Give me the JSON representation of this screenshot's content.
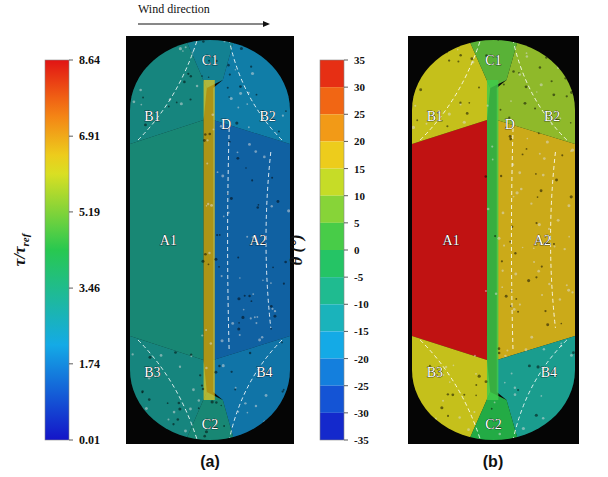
{
  "chart_data": [
    {
      "type": "heatmap",
      "title": "(a)",
      "annotation": "Wind direction",
      "colorbar": {
        "title": "τ/τ",
        "title_sub": "ref",
        "range": [
          0.01,
          8.64
        ],
        "ticks": [
          0.01,
          1.74,
          3.46,
          5.19,
          6.91,
          8.64
        ]
      },
      "regions": [
        {
          "label": "A1",
          "value": 3.2
        },
        {
          "label": "A2",
          "value": 1.6
        },
        {
          "label": "B1",
          "value": 3.0
        },
        {
          "label": "B2",
          "value": 2.2
        },
        {
          "label": "B3",
          "value": 3.0
        },
        {
          "label": "B4",
          "value": 2.0
        },
        {
          "label": "C1",
          "value": 2.6
        },
        {
          "label": "C2",
          "value": 3.2
        },
        {
          "label": "D",
          "value": 6.5
        }
      ]
    },
    {
      "type": "heatmap",
      "title": "(b)",
      "colorbar": {
        "title": "θ (°)",
        "range": [
          -35,
          35
        ],
        "ticks": [
          35,
          30,
          25,
          20,
          15,
          10,
          5,
          0,
          -5,
          -10,
          -15,
          -20,
          -25,
          -30,
          -35
        ]
      },
      "regions": [
        {
          "label": "A1",
          "value": 35
        },
        {
          "label": "A2",
          "value": 18
        },
        {
          "label": "B1",
          "value": 15
        },
        {
          "label": "B2",
          "value": 10
        },
        {
          "label": "B3",
          "value": 15
        },
        {
          "label": "B4",
          "value": -10
        },
        {
          "label": "C1",
          "value": 5
        },
        {
          "label": "C2",
          "value": 0
        },
        {
          "label": "D",
          "value": 2
        }
      ]
    }
  ]
}
